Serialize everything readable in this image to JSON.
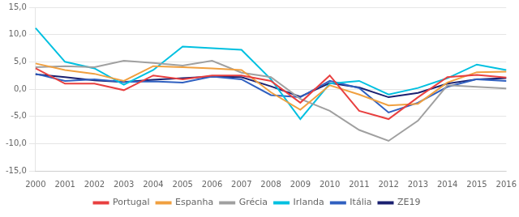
{
  "chart_data": {
    "type": "line",
    "categories": [
      "2000",
      "2001",
      "2002",
      "2003",
      "2004",
      "2005",
      "2006",
      "2007",
      "2008",
      "2009",
      "2010",
      "2011",
      "2012",
      "2013",
      "2014",
      "2015",
      "2016"
    ],
    "series": [
      {
        "name": "Portugal",
        "color": "#e84040",
        "values": [
          3.8,
          1.0,
          1.0,
          -0.2,
          2.5,
          1.8,
          2.5,
          2.5,
          1.5,
          -2.5,
          2.5,
          -4.0,
          -5.5,
          -1.5,
          2.2,
          2.6,
          2.1
        ]
      },
      {
        "name": "Espanha",
        "color": "#f0a040",
        "values": [
          4.7,
          3.5,
          2.8,
          1.5,
          4.2,
          4.0,
          3.8,
          3.5,
          -0.6,
          -3.8,
          0.7,
          -1.0,
          -3.0,
          -2.7,
          1.2,
          3.1,
          3.2
        ]
      },
      {
        "name": "Grécia",
        "color": "#a0a0a0",
        "values": [
          4.0,
          4.2,
          4.0,
          5.2,
          4.8,
          4.3,
          5.2,
          3.0,
          2.2,
          -1.8,
          -4.0,
          -7.5,
          -9.5,
          -5.8,
          0.7,
          0.4,
          0.1
        ]
      },
      {
        "name": "Irlanda",
        "color": "#00c0e0",
        "values": [
          11.2,
          5.0,
          3.8,
          0.8,
          3.5,
          7.8,
          7.5,
          7.2,
          1.8,
          -5.5,
          1.0,
          1.5,
          -1.0,
          0.2,
          2.0,
          4.5,
          3.5
        ]
      },
      {
        "name": "Itália",
        "color": "#3060c0",
        "values": [
          2.8,
          1.5,
          1.8,
          1.3,
          1.4,
          1.2,
          2.3,
          1.8,
          -1.1,
          -1.5,
          1.5,
          0.2,
          -4.3,
          -2.5,
          0.4,
          1.8,
          1.5
        ]
      },
      {
        "name": "ZE19",
        "color": "#1a2070",
        "values": [
          2.7,
          2.2,
          1.6,
          1.3,
          1.7,
          2.0,
          2.3,
          2.2,
          0.5,
          -1.4,
          1.1,
          0.3,
          -1.5,
          -0.7,
          1.0,
          1.8,
          2.0
        ]
      }
    ],
    "ylim": [
      -15,
      15
    ],
    "yticks": [
      {
        "value": -15,
        "label": "-15,0"
      },
      {
        "value": -10,
        "label": "-10,0"
      },
      {
        "value": -5,
        "label": "-5,0"
      },
      {
        "value": 0,
        "label": "0,0"
      },
      {
        "value": 5,
        "label": "5,0"
      },
      {
        "value": 10,
        "label": "10,0"
      },
      {
        "value": 15,
        "label": "15,0"
      }
    ],
    "grid": true,
    "legend": "bottom"
  }
}
